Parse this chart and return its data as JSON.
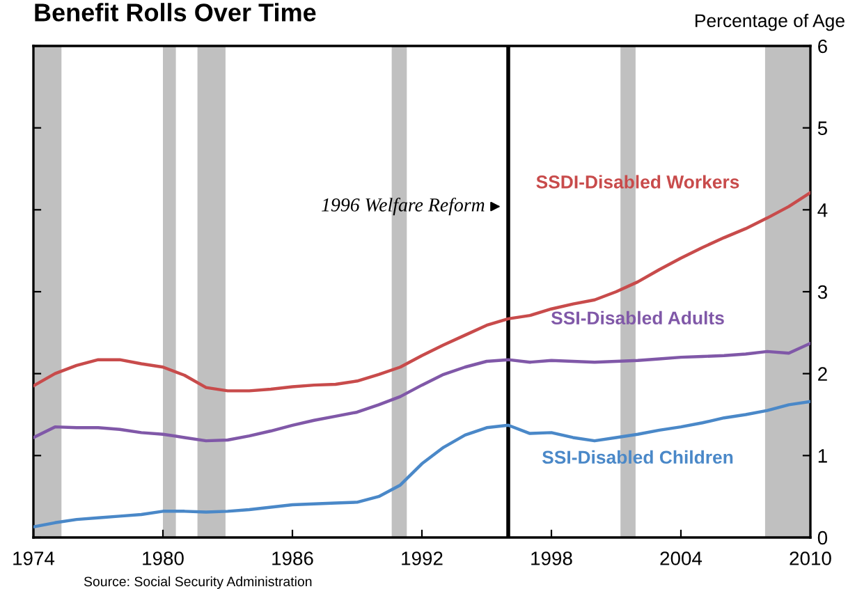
{
  "chart_data": {
    "type": "line",
    "title": "Benefit Rolls Over Time",
    "ylabel": "Percentage of Age",
    "x": [
      1974,
      1975,
      1976,
      1977,
      1978,
      1979,
      1980,
      1981,
      1982,
      1983,
      1984,
      1985,
      1986,
      1987,
      1988,
      1989,
      1990,
      1991,
      1992,
      1993,
      1994,
      1995,
      1996,
      1997,
      1998,
      1999,
      2000,
      2001,
      2002,
      2003,
      2004,
      2005,
      2006,
      2007,
      2008,
      2009,
      2010
    ],
    "series": [
      {
        "name": "SSDI-Disabled Workers",
        "color": "#c84b4b",
        "values": [
          1.85,
          2.0,
          2.1,
          2.17,
          2.17,
          2.12,
          2.08,
          1.98,
          1.83,
          1.79,
          1.79,
          1.81,
          1.84,
          1.86,
          1.87,
          1.91,
          1.99,
          2.08,
          2.22,
          2.35,
          2.47,
          2.59,
          2.67,
          2.71,
          2.79,
          2.85,
          2.9,
          3.0,
          3.12,
          3.27,
          3.41,
          3.54,
          3.66,
          3.77,
          3.9,
          4.04,
          4.21
        ]
      },
      {
        "name": "SSI-Disabled Adults",
        "color": "#8058a8",
        "values": [
          1.22,
          1.35,
          1.34,
          1.34,
          1.32,
          1.28,
          1.26,
          1.22,
          1.18,
          1.19,
          1.24,
          1.3,
          1.37,
          1.43,
          1.48,
          1.53,
          1.62,
          1.72,
          1.86,
          1.99,
          2.08,
          2.15,
          2.17,
          2.14,
          2.16,
          2.15,
          2.14,
          2.15,
          2.16,
          2.18,
          2.2,
          2.21,
          2.22,
          2.24,
          2.27,
          2.25,
          2.37
        ]
      },
      {
        "name": "SSI-Disabled Children",
        "color": "#4a88c8",
        "values": [
          0.13,
          0.18,
          0.22,
          0.24,
          0.26,
          0.28,
          0.32,
          0.32,
          0.31,
          0.32,
          0.34,
          0.37,
          0.4,
          0.41,
          0.42,
          0.43,
          0.5,
          0.64,
          0.9,
          1.1,
          1.25,
          1.34,
          1.37,
          1.27,
          1.28,
          1.22,
          1.18,
          1.22,
          1.26,
          1.31,
          1.35,
          1.4,
          1.46,
          1.5,
          1.55,
          1.62,
          1.66
        ]
      }
    ],
    "xlim": [
      1974,
      2010
    ],
    "xticks": [
      1974,
      1980,
      1986,
      1992,
      1998,
      2004,
      2010
    ],
    "ylim": [
      0,
      6
    ],
    "yticks": [
      0,
      1,
      2,
      3,
      4,
      5,
      6
    ],
    "ref_lines": [
      {
        "axis": "x",
        "value": 1996,
        "color": "#000000"
      }
    ],
    "bands": [
      {
        "axis": "x",
        "from": 1974,
        "to": 1975.3,
        "color": "#c0c0c0"
      },
      {
        "axis": "x",
        "from": 1980.0,
        "to": 1980.6,
        "color": "#c0c0c0"
      },
      {
        "axis": "x",
        "from": 1981.6,
        "to": 1982.9,
        "color": "#c0c0c0"
      },
      {
        "axis": "x",
        "from": 1990.6,
        "to": 1991.3,
        "color": "#c0c0c0"
      },
      {
        "axis": "x",
        "from": 2001.2,
        "to": 2001.9,
        "color": "#c0c0c0"
      },
      {
        "axis": "x",
        "from": 2007.9,
        "to": 2010,
        "color": "#c0c0c0"
      }
    ],
    "annotations": [
      {
        "text": "1996 Welfare Reform",
        "x": 1996,
        "y": 4.04
      },
      "Source: Social Security Administration"
    ],
    "grid": false,
    "legend": false
  }
}
